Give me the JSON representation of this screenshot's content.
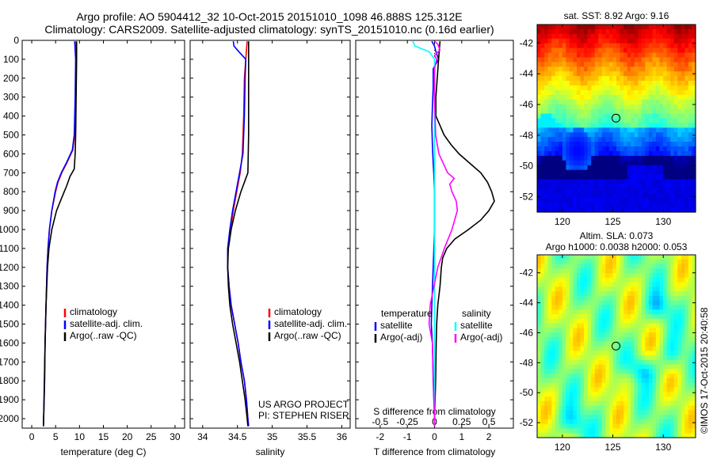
{
  "header": {
    "line1": "Argo profile: AO 5904412_32 10-Oct-2015 20151010_1098 46.888S 125.312E",
    "line2": "Climatology: CARS2009. Satellite-adjusted climatology: synTS_20151010.nc (0.16d earlier)"
  },
  "colors": {
    "climatology": "#ff0000",
    "satellite": "#0000ff",
    "argo": "#000000",
    "sat_salinity": "#00ffff",
    "argo_salinity": "#ff00ff"
  },
  "chart_data": [
    {
      "type": "line",
      "xlabel": "temperature (deg C)",
      "xticks": [
        "0",
        "5",
        "10",
        "15",
        "20",
        "25",
        "30"
      ],
      "xlim": [
        -2,
        32
      ],
      "ylim": [
        0,
        2050
      ],
      "yticks": [
        "0",
        "100",
        "200",
        "300",
        "400",
        "500",
        "600",
        "700",
        "800",
        "900",
        "1000",
        "1100",
        "1200",
        "1300",
        "1400",
        "1500",
        "1600",
        "1700",
        "1800",
        "1900",
        "2000"
      ],
      "legend": [
        "climatology",
        "satellite-adj. clim.",
        "Argo(..raw -QC)"
      ],
      "series": [
        {
          "name": "climatology",
          "color": "#ff0000",
          "depth": [
            5,
            100,
            300,
            500,
            580,
            650,
            700,
            750,
            800,
            900,
            1000,
            1100,
            1200,
            1400,
            1600,
            1800,
            2000,
            2040
          ],
          "values": [
            9.3,
            9.3,
            9.2,
            9.0,
            8.6,
            7.3,
            6.3,
            5.5,
            5.0,
            4.2,
            3.7,
            3.4,
            3.2,
            3.0,
            2.8,
            2.7,
            2.5,
            2.45
          ]
        },
        {
          "name": "satellite-adj. clim.",
          "color": "#0000ff",
          "depth": [
            5,
            100,
            300,
            500,
            580,
            650,
            700,
            750,
            800,
            900,
            1000,
            1100,
            1200,
            1400,
            1600,
            1800,
            2000,
            2040
          ],
          "values": [
            9.0,
            9.2,
            9.1,
            8.9,
            8.5,
            7.2,
            6.2,
            5.4,
            4.9,
            4.2,
            3.7,
            3.4,
            3.2,
            3.0,
            2.8,
            2.7,
            2.5,
            2.45
          ]
        },
        {
          "name": "Argo(..raw -QC)",
          "color": "#000000",
          "depth": [
            5,
            100,
            300,
            500,
            600,
            680,
            720,
            770,
            800,
            850,
            900,
            1000,
            1100,
            1200,
            1400,
            1600,
            1800,
            2000,
            2040
          ],
          "values": [
            9.4,
            9.4,
            9.3,
            9.2,
            9.1,
            8.9,
            8.0,
            7.3,
            6.8,
            6.0,
            5.2,
            4.2,
            3.6,
            3.3,
            3.0,
            2.8,
            2.65,
            2.5,
            2.45
          ]
        }
      ]
    },
    {
      "type": "line",
      "xlabel": "salinity",
      "xticks": [
        "34",
        "34.5",
        "35",
        "35.5",
        "36"
      ],
      "xlim": [
        33.82,
        36.12
      ],
      "ylim": [
        0,
        2050
      ],
      "legend": [
        "climatology",
        "satellite-adj. clim.",
        "Argo(..raw -QC)"
      ],
      "annotations": [
        "US ARGO PROJECT",
        "PI: STEPHEN RISER"
      ],
      "series": [
        {
          "name": "climatology",
          "color": "#ff0000",
          "depth": [
            5,
            50,
            200,
            400,
            600,
            700,
            800,
            900,
            1000,
            1100,
            1200,
            1300,
            1400,
            1500,
            1600,
            1700,
            1800,
            1900,
            2000,
            2040
          ],
          "values": [
            34.64,
            34.63,
            34.6,
            34.59,
            34.57,
            34.54,
            34.49,
            34.44,
            34.4,
            34.36,
            34.36,
            34.38,
            34.41,
            34.46,
            34.51,
            34.55,
            34.6,
            34.63,
            34.65,
            34.66
          ]
        },
        {
          "name": "satellite-adj. clim.",
          "color": "#0000ff",
          "depth": [
            5,
            30,
            60,
            100,
            200,
            400,
            600,
            700,
            800,
            900,
            1000,
            1100,
            1200,
            1300,
            1400,
            1500,
            1600,
            1700,
            1800,
            1900,
            2000,
            2040
          ],
          "values": [
            34.44,
            34.45,
            34.52,
            34.62,
            34.61,
            34.6,
            34.58,
            34.53,
            34.48,
            34.43,
            34.39,
            34.36,
            34.36,
            34.38,
            34.41,
            34.46,
            34.51,
            34.55,
            34.6,
            34.63,
            34.65,
            34.66
          ]
        },
        {
          "name": "Argo(..raw -QC)",
          "color": "#000000",
          "depth": [
            5,
            100,
            300,
            500,
            700,
            750,
            800,
            900,
            1000,
            1100,
            1200,
            1300,
            1400,
            1500,
            1600,
            1700,
            1800,
            1900,
            2000,
            2040
          ],
          "values": [
            34.66,
            34.66,
            34.66,
            34.66,
            34.65,
            34.6,
            34.55,
            34.47,
            34.41,
            34.37,
            34.36,
            34.37,
            34.39,
            34.43,
            34.48,
            34.53,
            34.57,
            34.61,
            34.64,
            34.65
          ]
        }
      ]
    },
    {
      "type": "line",
      "xlabel": "T difference from climatology",
      "xticks": [
        "-2",
        "-1",
        "0",
        "1",
        "2"
      ],
      "xlim": [
        -2.9,
        2.9
      ],
      "top_axis_label": "S difference from climatology",
      "top_xticks": [
        "-0.5",
        "-0.25",
        "0",
        "0.25",
        "0.5"
      ],
      "legend_temperature": [
        "temperature",
        "satellite",
        "Argo(-adj)"
      ],
      "legend_salinity": [
        "salinity",
        "satellite",
        "Argo(-adj)"
      ],
      "series": [
        {
          "name": "satellite",
          "group": "temperature",
          "color": "#0000ff",
          "depth": [
            5,
            30,
            60,
            100,
            150,
            250,
            350,
            450,
            550,
            650,
            700,
            800,
            900,
            1000,
            1200,
            1400,
            1500,
            1600,
            1800,
            2000,
            2040
          ],
          "values": [
            -0.1,
            0.0,
            0.05,
            0.15,
            -0.05,
            -0.05,
            -0.08,
            -0.1,
            -0.08,
            -0.05,
            -0.03,
            0.0,
            0.0,
            0.0,
            -0.05,
            -0.1,
            -0.12,
            -0.08,
            -0.05,
            0.0,
            0.0
          ]
        },
        {
          "name": "Argo(-adj)",
          "group": "temperature",
          "color": "#000000",
          "depth": [
            5,
            100,
            200,
            300,
            400,
            450,
            500,
            550,
            600,
            650,
            700,
            750,
            800,
            850,
            900,
            950,
            1000,
            1050,
            1100,
            1150,
            1200,
            1300,
            1400,
            1500,
            1600,
            1800,
            2000,
            2040
          ],
          "values": [
            0.2,
            0.15,
            0.1,
            0.05,
            0.05,
            0.2,
            0.35,
            0.6,
            0.9,
            1.3,
            1.7,
            1.95,
            2.1,
            2.2,
            2.0,
            1.7,
            1.25,
            0.75,
            0.45,
            0.3,
            0.25,
            0.2,
            0.12,
            0.08,
            0.06,
            0.04,
            0.0,
            0.0
          ]
        },
        {
          "name": "satellite",
          "group": "salinity",
          "color": "#00ffff",
          "depth": [
            5,
            30,
            60,
            100,
            200,
            400,
            600,
            800,
            1000,
            1200,
            1400,
            1600,
            1800,
            2000,
            2040
          ],
          "values": [
            -0.2,
            -0.18,
            -0.05,
            0.0,
            0.0,
            0.0,
            0.0,
            0.0,
            0.0,
            0.0,
            0.0,
            0.0,
            0.0,
            0.0,
            0.0
          ]
        },
        {
          "name": "Argo(-adj)",
          "group": "salinity",
          "color": "#ff00ff",
          "depth": [
            5,
            20,
            50,
            80,
            100,
            150,
            300,
            500,
            600,
            650,
            700,
            730,
            760,
            800,
            850,
            900,
            1000,
            1100,
            1200,
            1400,
            1500,
            1600,
            1800,
            2000,
            2040
          ],
          "values": [
            0.0,
            0.03,
            0.05,
            0.0,
            0.02,
            0.0,
            0.0,
            0.01,
            0.04,
            0.08,
            0.12,
            0.18,
            0.14,
            0.16,
            0.2,
            0.21,
            0.16,
            0.09,
            0.03,
            -0.04,
            -0.05,
            -0.02,
            -0.01,
            0.0,
            0.0
          ]
        }
      ]
    },
    {
      "type": "heatmap",
      "title": "sat. SST: 8.92 Argo: 9.16",
      "xticks": [
        "120",
        "125",
        "130"
      ],
      "yticks": [
        "-42",
        "-44",
        "-46",
        "-48",
        "-50",
        "-52"
      ],
      "xlim": [
        117.5,
        133.2
      ],
      "ylim": [
        -53,
        -40.8
      ],
      "marker": {
        "lon": 125.312,
        "lat": -46.888
      }
    },
    {
      "type": "heatmap",
      "title_lines": [
        "Altim. SLA: 0.073",
        "Argo h1000: 0.0038 h2000: 0.053"
      ],
      "xticks": [
        "120",
        "125",
        "130"
      ],
      "yticks": [
        "-42",
        "-44",
        "-46",
        "-48",
        "-50",
        "-52"
      ],
      "xlim": [
        117.5,
        133.2
      ],
      "ylim": [
        -53,
        -40.8
      ],
      "marker": {
        "lon": 125.312,
        "lat": -46.888
      }
    }
  ],
  "footer": {
    "timestamp": "©IMOS 17-Oct-2015 20:40:58"
  }
}
